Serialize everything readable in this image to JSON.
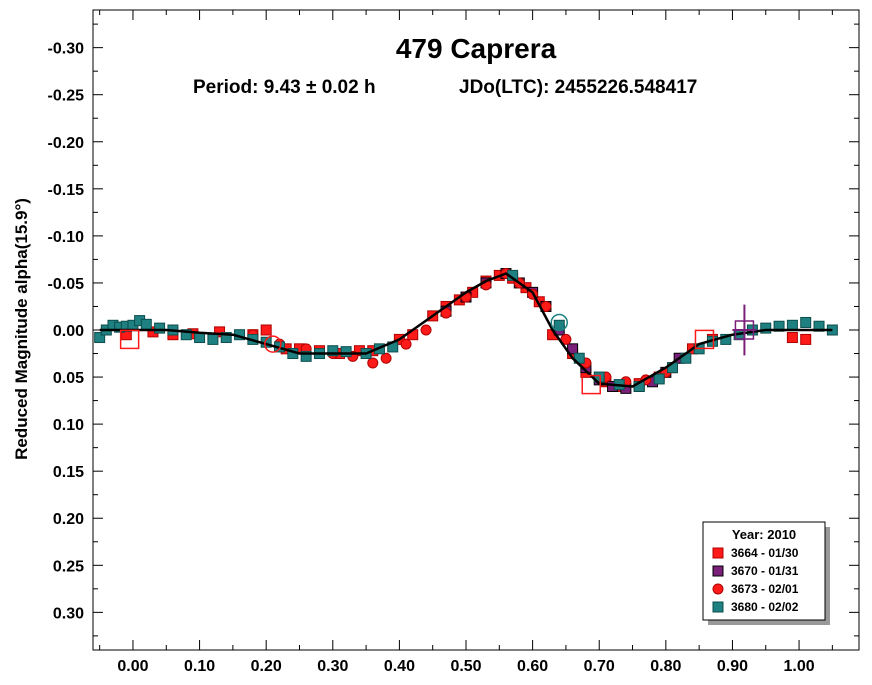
{
  "chart_data": {
    "type": "scatter",
    "title": "479 Caprera",
    "period_label": "Period: 9.43 ± 0.02 h",
    "epoch_label": "JDo(LTC): 2455226.548417",
    "ylabel": "Reduced Magnitude alpha(15.9°)",
    "xlabel": "",
    "xlim": [
      -0.06,
      1.09
    ],
    "ylim": [
      -0.34,
      0.34
    ],
    "y_inverted": true,
    "grid": false,
    "x_ticks": [
      0.0,
      0.1,
      0.2,
      0.3,
      0.4,
      0.5,
      0.6,
      0.7,
      0.8,
      0.9,
      1.0
    ],
    "x_tick_labels": [
      "0.00",
      "0.10",
      "0.20",
      "0.30",
      "0.40",
      "0.50",
      "0.60",
      "0.70",
      "0.80",
      "0.90",
      "1.00"
    ],
    "y_ticks": [
      -0.3,
      -0.25,
      -0.2,
      -0.15,
      -0.1,
      -0.05,
      0.0,
      0.05,
      0.1,
      0.15,
      0.2,
      0.25,
      0.3
    ],
    "y_tick_labels": [
      "-0.30",
      "-0.25",
      "-0.20",
      "-0.15",
      "-0.10",
      "-0.05",
      "0.00",
      "0.05",
      "0.10",
      "0.15",
      "0.20",
      "0.25",
      "0.30"
    ],
    "legend": {
      "title": "Year: 2010",
      "placement": "bottom-right",
      "entries": [
        {
          "label": "3664 - 01/30",
          "marker": "square",
          "color": "#ff1a1a",
          "edge": "#b00000"
        },
        {
          "label": "3670 - 01/31",
          "marker": "square",
          "color": "#7a1f7a",
          "edge": "#000000"
        },
        {
          "label": "3673 - 02/01",
          "marker": "circle",
          "color": "#ff1a1a",
          "edge": "#b00000"
        },
        {
          "label": "3680 - 02/02",
          "marker": "square",
          "color": "#1e8080",
          "edge": "#0d4d4d"
        }
      ]
    },
    "fit_curve": {
      "color": "#000000",
      "x": [
        -0.05,
        0.0,
        0.05,
        0.1,
        0.15,
        0.2,
        0.25,
        0.3,
        0.35,
        0.4,
        0.45,
        0.5,
        0.53,
        0.56,
        0.6,
        0.63,
        0.66,
        0.7,
        0.75,
        0.8,
        0.85,
        0.9,
        0.95,
        1.0,
        1.05
      ],
      "y": [
        0.0,
        0.0,
        0.0,
        0.003,
        0.005,
        0.015,
        0.025,
        0.025,
        0.025,
        0.01,
        -0.015,
        -0.04,
        -0.052,
        -0.06,
        -0.04,
        0.0,
        0.03,
        0.057,
        0.06,
        0.04,
        0.015,
        0.005,
        0.0,
        0.0,
        0.0
      ]
    },
    "error_bar": {
      "x": 0.918,
      "y": 0.0,
      "yerr": 0.027,
      "color": "#7a1f7a"
    },
    "open_markers": [
      {
        "x": -0.005,
        "y": 0.01,
        "shape": "square",
        "color": "#ff1a1a"
      },
      {
        "x": 0.21,
        "y": 0.015,
        "shape": "circle",
        "color": "#ff1a1a"
      },
      {
        "x": 0.64,
        "y": -0.008,
        "shape": "circle",
        "color": "#1e8080"
      },
      {
        "x": 0.688,
        "y": 0.058,
        "shape": "square",
        "color": "#ff1a1a"
      },
      {
        "x": 0.858,
        "y": 0.01,
        "shape": "square",
        "color": "#ff1a1a"
      },
      {
        "x": 0.918,
        "y": 0.0,
        "shape": "square",
        "color": "#7a1f7a"
      }
    ],
    "series": [
      {
        "name": "3664 - 01/30",
        "marker": "square",
        "x": [
          -0.01,
          0.03,
          0.06,
          0.09,
          0.13,
          0.18,
          0.2,
          0.23,
          0.25,
          0.28,
          0.31,
          0.34,
          0.36,
          0.4,
          0.42,
          0.45,
          0.47,
          0.49,
          0.51,
          0.53,
          0.55,
          0.57,
          0.59,
          0.61,
          0.63,
          0.66,
          0.68,
          0.71,
          0.73,
          0.76,
          0.79,
          0.81,
          0.84,
          0.87,
          0.99,
          1.01
        ],
        "y": [
          0.005,
          0.002,
          0.005,
          0.004,
          0.002,
          0.005,
          0.0,
          0.02,
          0.02,
          0.022,
          0.025,
          0.022,
          0.022,
          0.01,
          0.005,
          -0.015,
          -0.025,
          -0.032,
          -0.04,
          -0.052,
          -0.058,
          -0.055,
          -0.045,
          -0.03,
          0.005,
          0.025,
          0.045,
          0.055,
          0.06,
          0.057,
          0.05,
          0.04,
          0.02,
          0.01,
          0.008,
          0.01
        ]
      },
      {
        "name": "3670 - 01/31",
        "marker": "square",
        "x": [
          0.47,
          0.5,
          0.53,
          0.56,
          0.58,
          0.6,
          0.62,
          0.64,
          0.66,
          0.68,
          0.7,
          0.72,
          0.74,
          0.76,
          0.78,
          0.8,
          0.82
        ],
        "y": [
          -0.02,
          -0.035,
          -0.05,
          -0.06,
          -0.05,
          -0.04,
          -0.025,
          0.0,
          0.02,
          0.04,
          0.053,
          0.06,
          0.062,
          0.06,
          0.055,
          0.045,
          0.03
        ]
      },
      {
        "name": "3673 - 02/01",
        "marker": "circle",
        "x": [
          0.18,
          0.22,
          0.26,
          0.3,
          0.33,
          0.36,
          0.38,
          0.41,
          0.44,
          0.47,
          0.5,
          0.53,
          0.56,
          0.58,
          0.6,
          0.62,
          0.65,
          0.68,
          0.71,
          0.74,
          0.77,
          0.8
        ],
        "y": [
          0.005,
          0.015,
          0.02,
          0.025,
          0.028,
          0.035,
          0.03,
          0.015,
          0.0,
          -0.018,
          -0.035,
          -0.048,
          -0.06,
          -0.05,
          -0.038,
          -0.025,
          0.01,
          0.035,
          0.05,
          0.055,
          0.053,
          0.045
        ]
      },
      {
        "name": "3680 - 02/02",
        "marker": "square",
        "x": [
          -0.05,
          -0.04,
          -0.03,
          -0.02,
          -0.01,
          0.0,
          0.01,
          0.02,
          0.04,
          0.06,
          0.08,
          0.1,
          0.12,
          0.14,
          0.16,
          0.18,
          0.2,
          0.22,
          0.24,
          0.26,
          0.28,
          0.3,
          0.32,
          0.35,
          0.37,
          0.39,
          0.57,
          0.64,
          0.67,
          0.7,
          0.73,
          0.76,
          0.79,
          0.81,
          0.83,
          0.85,
          0.87,
          0.89,
          0.91,
          0.93,
          0.95,
          0.97,
          0.99,
          1.01,
          1.03,
          1.05
        ],
        "y": [
          0.008,
          0.0,
          -0.005,
          -0.003,
          -0.004,
          -0.005,
          -0.01,
          -0.006,
          -0.002,
          0.0,
          0.005,
          0.008,
          0.01,
          0.008,
          0.005,
          0.01,
          0.013,
          0.018,
          0.025,
          0.028,
          0.025,
          0.022,
          0.023,
          0.025,
          0.02,
          0.018,
          -0.058,
          -0.005,
          0.03,
          0.05,
          0.058,
          0.06,
          0.052,
          0.04,
          0.03,
          0.02,
          0.012,
          0.01,
          0.005,
          0.0,
          -0.002,
          -0.004,
          -0.005,
          -0.008,
          -0.004,
          0.0
        ]
      }
    ]
  }
}
